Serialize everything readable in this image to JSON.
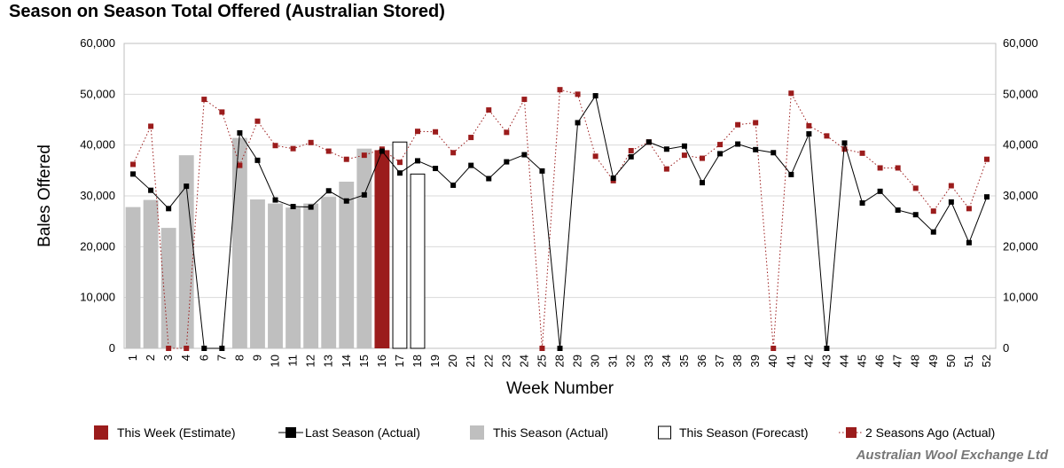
{
  "chart_data": {
    "type": "bar",
    "title": "Season on Season Total Offered (Australian Stored)",
    "xlabel": "Week Number",
    "ylabel": "Bales Offered",
    "ylim": [
      0,
      60000
    ],
    "y_ticks": [
      "0",
      "10,000",
      "20,000",
      "30,000",
      "40,000",
      "50,000",
      "60,000"
    ],
    "y_tick_values": [
      0,
      10000,
      20000,
      30000,
      40000,
      50000,
      60000
    ],
    "categories": [
      "1",
      "2",
      "3",
      "4",
      "6",
      "7",
      "8",
      "9",
      "10",
      "11",
      "12",
      "13",
      "14",
      "15",
      "16",
      "17",
      "18",
      "19",
      "20",
      "21",
      "22",
      "23",
      "24",
      "25",
      "28",
      "29",
      "30",
      "31",
      "32",
      "33",
      "34",
      "35",
      "36",
      "37",
      "38",
      "39",
      "40",
      "41",
      "42",
      "43",
      "44",
      "45",
      "46",
      "47",
      "48",
      "49",
      "50",
      "51",
      "52"
    ],
    "grid": true,
    "legend_position": "bottom",
    "legend": [
      {
        "label": "This Week (Estimate)",
        "key": "this_week"
      },
      {
        "label": "Last Season (Actual)",
        "key": "last_season"
      },
      {
        "label": "This Season (Actual)",
        "key": "this_season"
      },
      {
        "label": "This Season (Forecast)",
        "key": "forecast"
      },
      {
        "label": "2 Seasons Ago (Actual)",
        "key": "two_seasons"
      }
    ],
    "series": [
      {
        "key": "this_season",
        "name": "This Season (Actual)",
        "kind": "bar",
        "color": "#bfbfbf",
        "values": [
          27800,
          29200,
          23700,
          38000,
          null,
          null,
          41400,
          29300,
          28500,
          27700,
          28500,
          29800,
          32800,
          39300,
          null,
          null,
          null,
          null,
          null,
          null,
          null,
          null,
          null,
          null,
          null,
          null,
          null,
          null,
          null,
          null,
          null,
          null,
          null,
          null,
          null,
          null,
          null,
          null,
          null,
          null,
          null,
          null,
          null,
          null,
          null,
          null,
          null,
          null,
          null
        ]
      },
      {
        "key": "this_week",
        "name": "This Week (Estimate)",
        "kind": "bar",
        "color": "#9b1c1c",
        "values": [
          null,
          null,
          null,
          null,
          null,
          null,
          null,
          null,
          null,
          null,
          null,
          null,
          null,
          null,
          39000,
          null,
          null,
          null,
          null,
          null,
          null,
          null,
          null,
          null,
          null,
          null,
          null,
          null,
          null,
          null,
          null,
          null,
          null,
          null,
          null,
          null,
          null,
          null,
          null,
          null,
          null,
          null,
          null,
          null,
          null,
          null,
          null,
          null,
          null
        ]
      },
      {
        "key": "forecast",
        "name": "This Season (Forecast)",
        "kind": "bar-outline",
        "color": "#000000",
        "values": [
          null,
          null,
          null,
          null,
          null,
          null,
          null,
          null,
          null,
          null,
          null,
          null,
          null,
          null,
          null,
          40600,
          34300,
          null,
          null,
          null,
          null,
          null,
          null,
          null,
          null,
          null,
          null,
          null,
          null,
          null,
          null,
          null,
          null,
          null,
          null,
          null,
          null,
          null,
          null,
          null,
          null,
          null,
          null,
          null,
          null,
          null,
          null,
          null,
          null
        ]
      },
      {
        "key": "last_season",
        "name": "Last Season (Actual)",
        "kind": "line",
        "color": "#000000",
        "values": [
          34300,
          31100,
          27500,
          31900,
          0,
          0,
          42400,
          37000,
          29200,
          27900,
          27800,
          31000,
          29000,
          30200,
          38800,
          34500,
          36900,
          35400,
          32100,
          36000,
          33400,
          36700,
          38100,
          34900,
          0,
          44400,
          49700,
          33500,
          37700,
          40600,
          39200,
          39800,
          32600,
          38300,
          40200,
          39100,
          38500,
          34200,
          42200,
          0,
          40400,
          28600,
          30900,
          27200,
          26300,
          22900,
          28800,
          20800,
          29800
        ]
      },
      {
        "key": "two_seasons",
        "name": "2 Seasons Ago (Actual)",
        "kind": "line-dotted",
        "color": "#9b1c1c",
        "values": [
          36200,
          43700,
          0,
          0,
          49000,
          46500,
          36000,
          44700,
          39900,
          39300,
          40500,
          38800,
          37200,
          38000,
          39200,
          36600,
          42700,
          42600,
          38500,
          41500,
          46900,
          42500,
          49000,
          0,
          50900,
          50000,
          37800,
          33000,
          38900,
          40600,
          35300,
          38000,
          37400,
          40100,
          44000,
          44400,
          0,
          50200,
          43800,
          41800,
          39200,
          38400,
          35500,
          35500,
          31500,
          27000,
          32000,
          27500,
          37200
        ]
      }
    ]
  },
  "footer": {
    "credit": "Australian Wool Exchange Ltd"
  }
}
